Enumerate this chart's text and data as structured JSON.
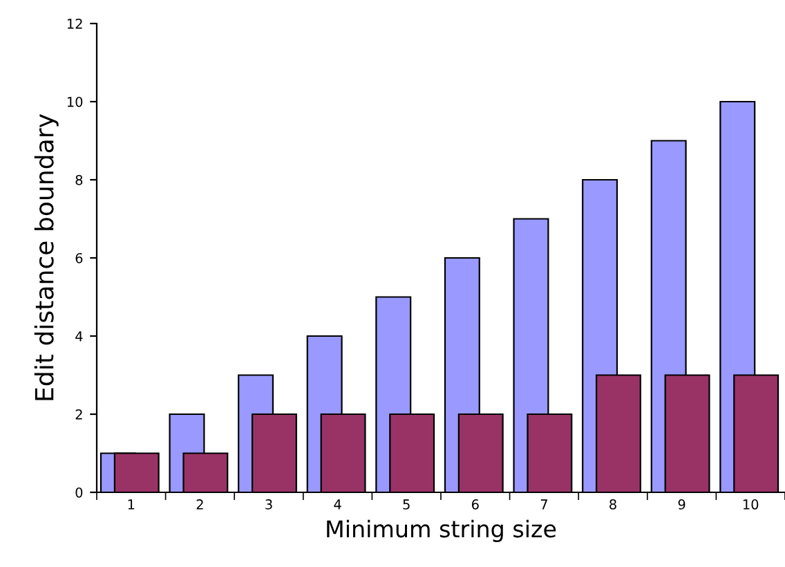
{
  "chart_data": {
    "type": "bar",
    "xlabel": "Minimum string size",
    "ylabel": "Edit distance boundary",
    "categories": [
      "1",
      "2",
      "3",
      "4",
      "5",
      "6",
      "7",
      "8",
      "9",
      "10"
    ],
    "series": [
      {
        "color": "#9999ff",
        "values": [
          1,
          2,
          3,
          4,
          5,
          6,
          7,
          8,
          9,
          10
        ]
      },
      {
        "color": "#993366",
        "values": [
          1,
          1,
          2,
          2,
          2,
          2,
          2,
          3,
          3,
          3
        ]
      }
    ],
    "ylim": [
      0,
      12
    ],
    "yticks": [
      0,
      2,
      4,
      6,
      8,
      10,
      12
    ],
    "grid": false,
    "legend": false
  }
}
